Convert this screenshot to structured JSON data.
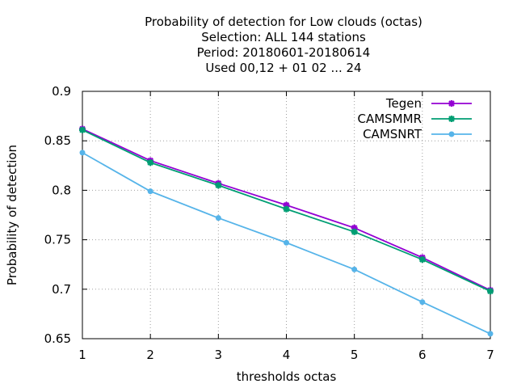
{
  "chart_data": {
    "type": "line",
    "title_lines": [
      "Probability of detection  for Low clouds (octas)",
      "Selection: ALL    144 stations",
      "Period: 20180601-20180614",
      "Used  00,12  + 01 02 ... 24"
    ],
    "xlabel": "thresholds octas",
    "ylabel": "Probability of detection",
    "x": [
      1,
      2,
      3,
      4,
      5,
      6,
      7
    ],
    "xlim": [
      1,
      7
    ],
    "ylim": [
      0.65,
      0.9
    ],
    "x_ticks": [
      1,
      2,
      3,
      4,
      5,
      6,
      7
    ],
    "y_ticks": [
      0.65,
      0.7,
      0.75,
      0.8,
      0.85,
      0.9
    ],
    "x_tick_labels": [
      "1",
      "2",
      "3",
      "4",
      "5",
      "6",
      "7"
    ],
    "y_tick_labels": [
      "0.65",
      "0.7",
      "0.75",
      "0.8",
      "0.85",
      "0.9"
    ],
    "grid": true,
    "legend_position": "top-right",
    "series": [
      {
        "name": "Tegen",
        "color": "#9400d3",
        "marker": "cross",
        "values": [
          0.862,
          0.83,
          0.807,
          0.785,
          0.762,
          0.732,
          0.699
        ]
      },
      {
        "name": "CAMSMMR",
        "color": "#009e73",
        "marker": "cross",
        "values": [
          0.861,
          0.828,
          0.805,
          0.781,
          0.758,
          0.73,
          0.698
        ]
      },
      {
        "name": "CAMSNRT",
        "color": "#56b4e9",
        "marker": "circle",
        "values": [
          0.838,
          0.799,
          0.772,
          0.747,
          0.72,
          0.687,
          0.655
        ]
      }
    ]
  }
}
